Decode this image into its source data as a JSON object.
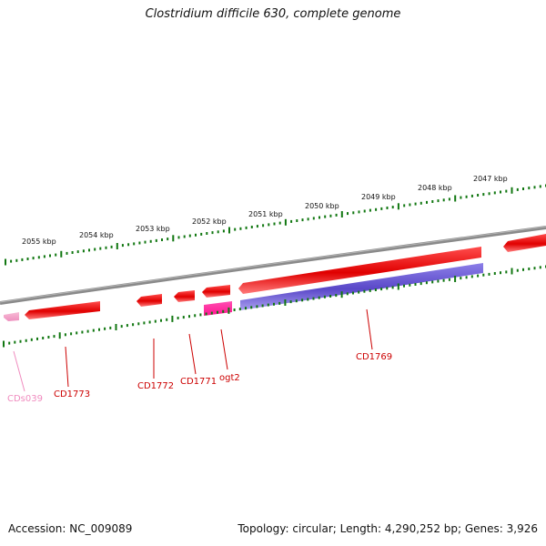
{
  "title": "Clostridium difficile 630, complete genome",
  "scale_labels": [
    "2055 kbp",
    "2054 kbp",
    "2053 kbp",
    "2052 kbp",
    "2051 kbp",
    "2050 kbp",
    "2049 kbp",
    "2048 kbp",
    "2047 kbp"
  ],
  "gene_labels": {
    "cds039": "CDs039",
    "cd1773": "CD1773",
    "cd1772": "CD1772",
    "cd1771": "CD1771",
    "ogt2": "ogt2",
    "cd1769": "CD1769"
  },
  "colors": {
    "cds_forward": "#e8000a",
    "cds_reverse": "#6a5acd",
    "highlight_cds": "#ff1493",
    "pseudo_cds": "#f4a6c8",
    "label_red": "#cc0000",
    "label_pink": "#f08cbf",
    "tick_green": "#117711",
    "backbone": "#8a8a8a"
  },
  "footer": {
    "accession": "Accession: NC_009089",
    "summary": "Topology: circular; Length: 4,290,252 bp; Genes: 3,926"
  }
}
